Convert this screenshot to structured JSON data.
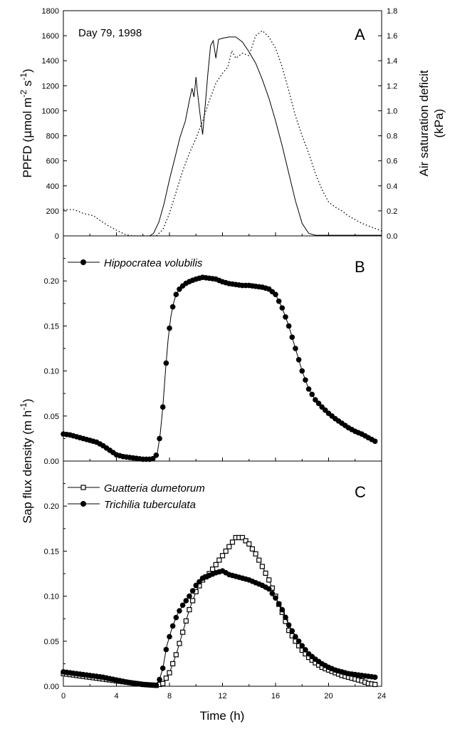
{
  "chart_data": [
    {
      "panel_id": "A",
      "type": "line",
      "annotation": "Day 79, 1998",
      "ylabel": "PPFD (μmol m-2 s-1)",
      "ylabel_parts": [
        "PPFD (",
        "μ",
        "mol m",
        "-2",
        " s",
        "-1",
        ")"
      ],
      "y2label_lines": [
        "Air saturation deficit",
        "(kPa)"
      ],
      "xlim": [
        0,
        24
      ],
      "ylim": [
        0,
        1800
      ],
      "y2lim": [
        0,
        1.8
      ],
      "yticks": [
        "0",
        "200",
        "400",
        "600",
        "800",
        "1000",
        "1200",
        "1400",
        "1600",
        "1800"
      ],
      "y2ticks": [
        "0.0",
        "0.2",
        "0.4",
        "0.6",
        "0.8",
        "1.0",
        "1.2",
        "1.4",
        "1.6",
        "1.8"
      ],
      "series": [
        {
          "style": "solid",
          "axis": "left",
          "points": [
            [
              0,
              0
            ],
            [
              6.5,
              0
            ],
            [
              6.8,
              20
            ],
            [
              7.2,
              110
            ],
            [
              7.6,
              260
            ],
            [
              8.0,
              450
            ],
            [
              8.4,
              620
            ],
            [
              8.8,
              790
            ],
            [
              9.2,
              920
            ],
            [
              9.5,
              1080
            ],
            [
              9.7,
              1180
            ],
            [
              9.85,
              1110
            ],
            [
              10.0,
              1270
            ],
            [
              10.1,
              1160
            ],
            [
              10.3,
              980
            ],
            [
              10.5,
              810
            ],
            [
              10.7,
              1050
            ],
            [
              10.9,
              1300
            ],
            [
              11.1,
              1520
            ],
            [
              11.3,
              1560
            ],
            [
              11.5,
              1420
            ],
            [
              11.7,
              1570
            ],
            [
              12.0,
              1580
            ],
            [
              12.5,
              1590
            ],
            [
              13.0,
              1590
            ],
            [
              13.5,
              1550
            ],
            [
              14.0,
              1470
            ],
            [
              14.5,
              1380
            ],
            [
              15.0,
              1250
            ],
            [
              15.5,
              1100
            ],
            [
              16.0,
              920
            ],
            [
              16.5,
              720
            ],
            [
              17.0,
              500
            ],
            [
              17.5,
              280
            ],
            [
              18.0,
              100
            ],
            [
              18.5,
              20
            ],
            [
              19.0,
              5
            ],
            [
              24,
              5
            ]
          ]
        },
        {
          "style": "dotted",
          "axis": "right",
          "points": [
            [
              0,
              0.21
            ],
            [
              0.8,
              0.21
            ],
            [
              1.5,
              0.18
            ],
            [
              2.3,
              0.16
            ],
            [
              2.8,
              0.12
            ],
            [
              3.4,
              0.08
            ],
            [
              4.1,
              0.04
            ],
            [
              4.7,
              0.01
            ],
            [
              5.2,
              0
            ],
            [
              7.0,
              0
            ],
            [
              7.5,
              0.05
            ],
            [
              8.0,
              0.18
            ],
            [
              8.5,
              0.35
            ],
            [
              9.0,
              0.52
            ],
            [
              9.5,
              0.66
            ],
            [
              10.0,
              0.78
            ],
            [
              10.5,
              0.92
            ],
            [
              11.0,
              1.08
            ],
            [
              11.5,
              1.22
            ],
            [
              12.0,
              1.3
            ],
            [
              12.4,
              1.35
            ],
            [
              12.7,
              1.48
            ],
            [
              13.0,
              1.42
            ],
            [
              13.5,
              1.46
            ],
            [
              14.0,
              1.44
            ],
            [
              14.5,
              1.6
            ],
            [
              15.0,
              1.64
            ],
            [
              15.5,
              1.59
            ],
            [
              16.0,
              1.5
            ],
            [
              16.5,
              1.35
            ],
            [
              17.0,
              1.16
            ],
            [
              17.5,
              0.96
            ],
            [
              18.0,
              0.8
            ],
            [
              18.5,
              0.66
            ],
            [
              19.0,
              0.5
            ],
            [
              19.5,
              0.37
            ],
            [
              20.0,
              0.27
            ],
            [
              20.5,
              0.23
            ],
            [
              21.0,
              0.2
            ],
            [
              21.5,
              0.16
            ],
            [
              22.0,
              0.13
            ],
            [
              22.5,
              0.1
            ],
            [
              23.0,
              0.08
            ],
            [
              23.5,
              0.06
            ],
            [
              24.0,
              0.04
            ]
          ]
        }
      ]
    },
    {
      "panel_id": "B",
      "type": "line",
      "xlim": [
        0,
        24
      ],
      "ylim": [
        0,
        0.25
      ],
      "yticks": [
        "0.00",
        "0.05",
        "0.10",
        "0.15",
        "0.20"
      ],
      "series": [
        {
          "name": "Hippocratea volubilis",
          "marker": "filled-circle",
          "points": [
            [
              0,
              0.03
            ],
            [
              0.5,
              0.029
            ],
            [
              1,
              0.027
            ],
            [
              1.5,
              0.025
            ],
            [
              2,
              0.023
            ],
            [
              2.5,
              0.021
            ],
            [
              3,
              0.017
            ],
            [
              3.5,
              0.012
            ],
            [
              4,
              0.007
            ],
            [
              4.5,
              0.005
            ],
            [
              5,
              0.004
            ],
            [
              5.5,
              0.003
            ],
            [
              6,
              0.002
            ],
            [
              6.5,
              0.002
            ],
            [
              6.9,
              0.003
            ],
            [
              7.1,
              0.01
            ],
            [
              7.3,
              0.03
            ],
            [
              7.5,
              0.06
            ],
            [
              7.7,
              0.1
            ],
            [
              7.9,
              0.135
            ],
            [
              8.1,
              0.16
            ],
            [
              8.3,
              0.175
            ],
            [
              8.5,
              0.185
            ],
            [
              8.8,
              0.192
            ],
            [
              9.2,
              0.197
            ],
            [
              9.6,
              0.2
            ],
            [
              10,
              0.202
            ],
            [
              10.5,
              0.204
            ],
            [
              11,
              0.203
            ],
            [
              11.5,
              0.202
            ],
            [
              12,
              0.199
            ],
            [
              12.5,
              0.197
            ],
            [
              13,
              0.196
            ],
            [
              13.5,
              0.195
            ],
            [
              14,
              0.195
            ],
            [
              14.5,
              0.194
            ],
            [
              15,
              0.193
            ],
            [
              15.5,
              0.191
            ],
            [
              16,
              0.185
            ],
            [
              16.5,
              0.17
            ],
            [
              17,
              0.15
            ],
            [
              17.5,
              0.125
            ],
            [
              18,
              0.1
            ],
            [
              18.5,
              0.08
            ],
            [
              19,
              0.068
            ],
            [
              19.5,
              0.06
            ],
            [
              20,
              0.053
            ],
            [
              20.5,
              0.047
            ],
            [
              21,
              0.042
            ],
            [
              21.5,
              0.037
            ],
            [
              22,
              0.033
            ],
            [
              22.5,
              0.03
            ],
            [
              23,
              0.026
            ],
            [
              23.5,
              0.022
            ]
          ]
        }
      ]
    },
    {
      "panel_id": "C",
      "type": "line",
      "xlabel": "Time (h)",
      "xlim": [
        0,
        24
      ],
      "ylim": [
        0,
        0.25
      ],
      "xticks": [
        "0",
        "4",
        "8",
        "12",
        "16",
        "20",
        "24"
      ],
      "yticks": [
        "0.00",
        "0.05",
        "0.10",
        "0.15",
        "0.20"
      ],
      "series": [
        {
          "name": "Guatteria dumetorum",
          "marker": "open-square",
          "points": [
            [
              0,
              0.014
            ],
            [
              0.5,
              0.013
            ],
            [
              1,
              0.012
            ],
            [
              2,
              0.01
            ],
            [
              3,
              0.008
            ],
            [
              4,
              0.006
            ],
            [
              5,
              0.004
            ],
            [
              6,
              0.002
            ],
            [
              7,
              0.001
            ],
            [
              7.5,
              0.003
            ],
            [
              8,
              0.015
            ],
            [
              8.5,
              0.035
            ],
            [
              9,
              0.06
            ],
            [
              9.5,
              0.085
            ],
            [
              10,
              0.105
            ],
            [
              10.5,
              0.118
            ],
            [
              11,
              0.125
            ],
            [
              11.5,
              0.135
            ],
            [
              12,
              0.145
            ],
            [
              12.5,
              0.155
            ],
            [
              13,
              0.165
            ],
            [
              13.5,
              0.165
            ],
            [
              14,
              0.158
            ],
            [
              14.5,
              0.147
            ],
            [
              15,
              0.133
            ],
            [
              15.5,
              0.118
            ],
            [
              16,
              0.1
            ],
            [
              16.5,
              0.082
            ],
            [
              17,
              0.062
            ],
            [
              17.5,
              0.05
            ],
            [
              18,
              0.04
            ],
            [
              18.5,
              0.032
            ],
            [
              19,
              0.026
            ],
            [
              19.5,
              0.021
            ],
            [
              20,
              0.018
            ],
            [
              20.5,
              0.015
            ],
            [
              21,
              0.012
            ],
            [
              21.5,
              0.01
            ],
            [
              22,
              0.008
            ],
            [
              22.5,
              0.006
            ],
            [
              23,
              0.003
            ],
            [
              23.5,
              0.002
            ]
          ]
        },
        {
          "name": "Trichilia tuberculata",
          "marker": "filled-circle",
          "points": [
            [
              0,
              0.016
            ],
            [
              0.5,
              0.015
            ],
            [
              1,
              0.014
            ],
            [
              2,
              0.012
            ],
            [
              3,
              0.01
            ],
            [
              4,
              0.007
            ],
            [
              5,
              0.004
            ],
            [
              6,
              0.002
            ],
            [
              7,
              0.001
            ],
            [
              7.2,
              0.005
            ],
            [
              7.5,
              0.02
            ],
            [
              7.8,
              0.045
            ],
            [
              8.2,
              0.065
            ],
            [
              8.6,
              0.08
            ],
            [
              9,
              0.09
            ],
            [
              9.5,
              0.1
            ],
            [
              10,
              0.112
            ],
            [
              10.5,
              0.12
            ],
            [
              11,
              0.123
            ],
            [
              11.5,
              0.126
            ],
            [
              12,
              0.128
            ],
            [
              12.5,
              0.124
            ],
            [
              13,
              0.122
            ],
            [
              13.5,
              0.12
            ],
            [
              14,
              0.118
            ],
            [
              14.5,
              0.115
            ],
            [
              15,
              0.112
            ],
            [
              15.5,
              0.108
            ],
            [
              16,
              0.098
            ],
            [
              16.5,
              0.085
            ],
            [
              17,
              0.068
            ],
            [
              17.5,
              0.055
            ],
            [
              18,
              0.045
            ],
            [
              18.5,
              0.036
            ],
            [
              19,
              0.03
            ],
            [
              19.5,
              0.025
            ],
            [
              20,
              0.021
            ],
            [
              20.5,
              0.018
            ],
            [
              21,
              0.016
            ],
            [
              21.5,
              0.014
            ],
            [
              22,
              0.013
            ],
            [
              22.5,
              0.012
            ],
            [
              23,
              0.011
            ],
            [
              23.5,
              0.01
            ]
          ]
        }
      ]
    }
  ],
  "shared_ylabel_bc": "Sap flux density (m h-1)",
  "shared_ylabel_bc_parts": [
    "Sap flux density (m h",
    "-1",
    ")"
  ]
}
